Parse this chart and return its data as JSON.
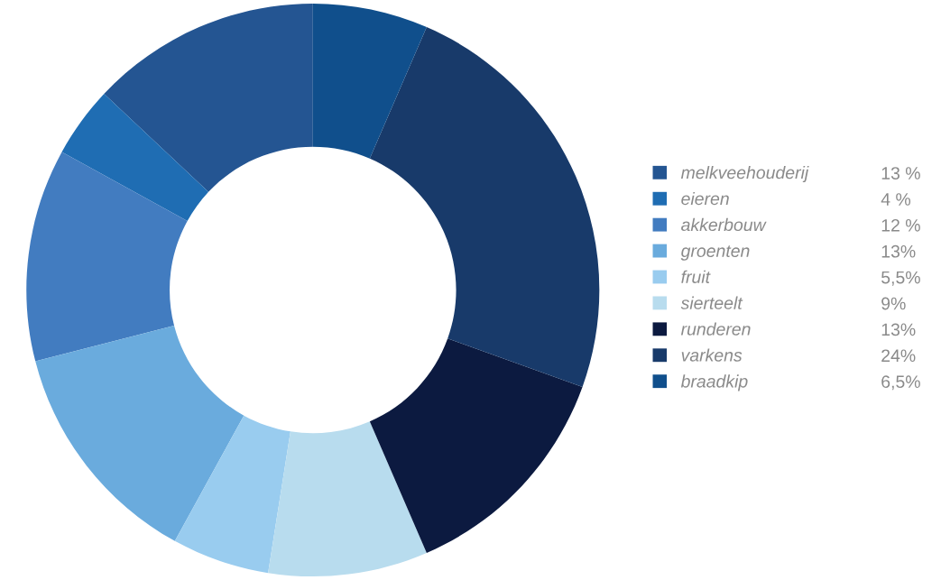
{
  "chart_data": {
    "type": "donut",
    "categories": [
      "melkveehouderij",
      "eieren",
      "akkerbouw",
      "groenten",
      "fruit",
      "sierteelt",
      "runderen",
      "varkens",
      "braadkip"
    ],
    "values": [
      13,
      4,
      12,
      13,
      5.5,
      9,
      13,
      24,
      6.5
    ],
    "value_labels": [
      "13 %",
      "4 %",
      "12 %",
      "13%",
      "5,5%",
      "9%",
      "13%",
      "24%",
      "6,5%"
    ],
    "colors": [
      "#245592",
      "#1f6db3",
      "#427cc0",
      "#6aabdd",
      "#99ccef",
      "#b8dcee",
      "#0c1a40",
      "#183a6a",
      "#104f8c"
    ],
    "legend": "right"
  }
}
